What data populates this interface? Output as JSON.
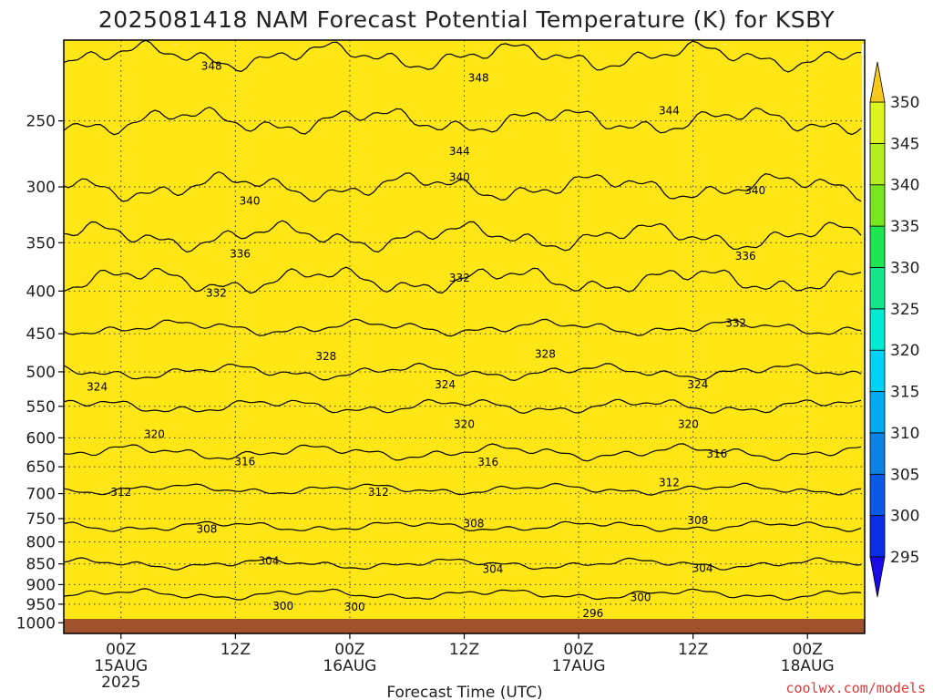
{
  "chart_data": {
    "type": "heatmap",
    "title": "2025081418 NAM Forecast Potential Temperature (K) for KSBY",
    "xlabel": "Forecast Time (UTC)",
    "ylabel": "",
    "x_ticks": [
      {
        "line1": "00Z",
        "line2": "15AUG",
        "line3": "2025",
        "hour": 6
      },
      {
        "line1": "12Z",
        "line2": "",
        "line3": "",
        "hour": 18
      },
      {
        "line1": "00Z",
        "line2": "16AUG",
        "line3": "",
        "hour": 30
      },
      {
        "line1": "12Z",
        "line2": "",
        "line3": "",
        "hour": 42
      },
      {
        "line1": "00Z",
        "line2": "17AUG",
        "line3": "",
        "hour": 54
      },
      {
        "line1": "12Z",
        "line2": "",
        "line3": "",
        "hour": 66
      },
      {
        "line1": "00Z",
        "line2": "18AUG",
        "line3": "",
        "hour": 78
      }
    ],
    "x_range_hours": [
      0,
      84
    ],
    "y_levels_hpa": [
      1000,
      950,
      900,
      850,
      800,
      750,
      700,
      650,
      600,
      550,
      500,
      450,
      400,
      350,
      300,
      250
    ],
    "y_range_hpa": [
      1030,
      200
    ],
    "y_scale": "log-pressure",
    "colorbar": {
      "levels": [
        295,
        300,
        305,
        310,
        315,
        320,
        325,
        330,
        335,
        340,
        345,
        350
      ],
      "colors": [
        "#1a0ae6",
        "#0a2ee6",
        "#0a5ae6",
        "#0a82e6",
        "#00aaf0",
        "#00d2f5",
        "#00ebd2",
        "#14e68c",
        "#1ee650",
        "#78e61e",
        "#b4ee1e",
        "#dcf51e",
        "#ffe614",
        "#f5c81e"
      ]
    },
    "contour_interval": 4,
    "contour_levels": [
      296,
      300,
      304,
      308,
      312,
      316,
      320,
      324,
      328,
      332,
      336,
      340,
      344,
      348
    ],
    "profile_hpa": [
      1000,
      950,
      900,
      850,
      800,
      750,
      700,
      650,
      600,
      550,
      500,
      450,
      400,
      350,
      300,
      250,
      200
    ],
    "profile_theta": [
      298,
      299,
      301,
      304,
      306,
      309,
      311.5,
      314.5,
      317.5,
      320,
      324,
      327.5,
      331,
      335.5,
      340,
      344,
      349
    ],
    "contour_labels": [
      {
        "text": "348",
        "hour": 15.5,
        "hpa": 215
      },
      {
        "text": "348",
        "hour": 43.5,
        "hpa": 222
      },
      {
        "text": "344",
        "hour": 63.5,
        "hpa": 243
      },
      {
        "text": "344",
        "hour": 41.5,
        "hpa": 272
      },
      {
        "text": "340",
        "hour": 41.5,
        "hpa": 292
      },
      {
        "text": "340",
        "hour": 19.5,
        "hpa": 312
      },
      {
        "text": "340",
        "hour": 72.5,
        "hpa": 303
      },
      {
        "text": "336",
        "hour": 18.5,
        "hpa": 361
      },
      {
        "text": "336",
        "hour": 71.5,
        "hpa": 363
      },
      {
        "text": "332",
        "hour": 41.5,
        "hpa": 386
      },
      {
        "text": "332",
        "hour": 16,
        "hpa": 402
      },
      {
        "text": "332",
        "hour": 70.5,
        "hpa": 437
      },
      {
        "text": "328",
        "hour": 27.5,
        "hpa": 479
      },
      {
        "text": "328",
        "hour": 50.5,
        "hpa": 476
      },
      {
        "text": "324",
        "hour": 3.5,
        "hpa": 521
      },
      {
        "text": "324",
        "hour": 40,
        "hpa": 518
      },
      {
        "text": "324",
        "hour": 66.5,
        "hpa": 518
      },
      {
        "text": "320",
        "hour": 42,
        "hpa": 578
      },
      {
        "text": "320",
        "hour": 9.5,
        "hpa": 594
      },
      {
        "text": "320",
        "hour": 65.5,
        "hpa": 578
      },
      {
        "text": "316",
        "hour": 19,
        "hpa": 641
      },
      {
        "text": "316",
        "hour": 44.5,
        "hpa": 642
      },
      {
        "text": "316",
        "hour": 68.5,
        "hpa": 627
      },
      {
        "text": "312",
        "hour": 6,
        "hpa": 697
      },
      {
        "text": "312",
        "hour": 33,
        "hpa": 697
      },
      {
        "text": "312",
        "hour": 63.5,
        "hpa": 679
      },
      {
        "text": "308",
        "hour": 15,
        "hpa": 772
      },
      {
        "text": "308",
        "hour": 43,
        "hpa": 760
      },
      {
        "text": "308",
        "hour": 66.5,
        "hpa": 754
      },
      {
        "text": "304",
        "hour": 21.5,
        "hpa": 843
      },
      {
        "text": "304",
        "hour": 45,
        "hpa": 862
      },
      {
        "text": "304",
        "hour": 67,
        "hpa": 860
      },
      {
        "text": "300",
        "hour": 23,
        "hpa": 955
      },
      {
        "text": "300",
        "hour": 30.5,
        "hpa": 957
      },
      {
        "text": "300",
        "hour": 60.5,
        "hpa": 932
      },
      {
        "text": "296",
        "hour": 55.5,
        "hpa": 975
      }
    ],
    "grid": true,
    "legend": "right"
  },
  "credit": "coolwx.com/models"
}
